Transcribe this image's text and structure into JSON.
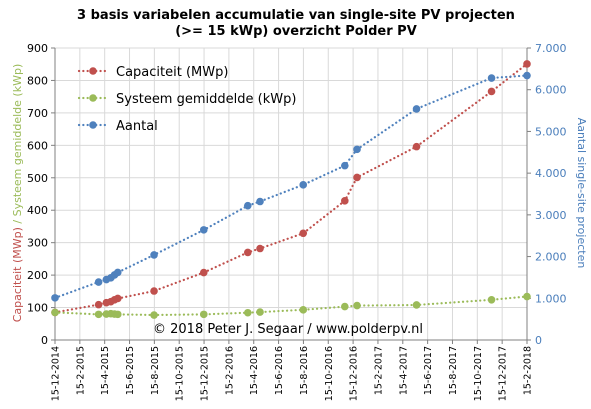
{
  "chart_data": {
    "type": "line",
    "title_line1": "3 basis variabelen accumulatie van single-site PV projecten",
    "title_line2": "(>= 15 kWp) overzicht Polder PV",
    "ylabel_left_part1": "Capaciteit (MWp)",
    "ylabel_left_sep": " / ",
    "ylabel_left_part2": "Systeem gemiddelde (kWp)",
    "ylabel_right": "Aantal single-site projecten",
    "ylim": [
      0,
      900
    ],
    "y_ticks": [
      "0",
      "100",
      "200",
      "300",
      "400",
      "500",
      "600",
      "700",
      "800",
      "900"
    ],
    "y2lim": [
      0,
      7000
    ],
    "y2_ticks": [
      "0",
      "1.000",
      "2.000",
      "3.000",
      "4.000",
      "5.000",
      "6.000",
      "7.000"
    ],
    "xlim": [
      "2014-12-15",
      "2018-02-15"
    ],
    "x_ticks": [
      "15-12-2014",
      "15-2-2015",
      "15-4-2015",
      "15-6-2015",
      "15-8-2015",
      "15-10-2015",
      "15-12-2015",
      "15-2-2016",
      "15-4-2016",
      "15-6-2016",
      "15-8-2016",
      "15-10-2016",
      "15-12-2016",
      "15-2-2017",
      "15-4-2017",
      "15-6-2017",
      "15-8-2017",
      "15-10-2017",
      "15-12-2017",
      "15-2-2018"
    ],
    "legend_position": "top-left",
    "grid": true,
    "copyright": "© 2018 Peter J. Segaar / www.polderpv.nl",
    "series": [
      {
        "name": "Capaciteit (MWp)",
        "axis": "left",
        "color": "#c0504d",
        "x": [
          "2014-12-15",
          "2015-04-01",
          "2015-04-20",
          "2015-05-01",
          "2015-05-10",
          "2015-05-18",
          "2015-08-15",
          "2015-12-15",
          "2016-04-01",
          "2016-05-01",
          "2016-08-15",
          "2016-11-25",
          "2016-12-25",
          "2017-05-20",
          "2017-11-20",
          "2018-02-15"
        ],
        "y": [
          85,
          109,
          115,
          118,
          124,
          128,
          151,
          208,
          270,
          282,
          329,
          429,
          501,
          596,
          766,
          851
        ]
      },
      {
        "name": "Systeem gemiddelde (kWp)",
        "axis": "left",
        "color": "#9bbb59",
        "x": [
          "2014-12-15",
          "2015-04-01",
          "2015-04-20",
          "2015-05-01",
          "2015-05-10",
          "2015-05-18",
          "2015-08-15",
          "2015-12-15",
          "2016-04-01",
          "2016-05-01",
          "2016-08-15",
          "2016-11-25",
          "2016-12-25",
          "2017-05-20",
          "2017-11-20",
          "2018-02-15"
        ],
        "y": [
          85,
          79,
          80,
          81,
          80,
          79,
          77,
          79,
          84,
          86,
          93,
          103,
          106,
          108,
          124,
          134
        ]
      },
      {
        "name": "Aantal",
        "axis": "right",
        "color": "#4f81bd",
        "x": [
          "2014-12-15",
          "2015-04-01",
          "2015-04-20",
          "2015-05-01",
          "2015-05-10",
          "2015-05-18",
          "2015-08-15",
          "2015-12-15",
          "2016-04-01",
          "2016-05-01",
          "2016-08-15",
          "2016-11-25",
          "2016-12-25",
          "2017-05-20",
          "2017-11-20",
          "2018-02-15"
        ],
        "y": [
          1010,
          1390,
          1450,
          1490,
          1560,
          1620,
          2040,
          2640,
          3220,
          3320,
          3720,
          4180,
          4570,
          5540,
          6280,
          6340
        ]
      }
    ]
  }
}
